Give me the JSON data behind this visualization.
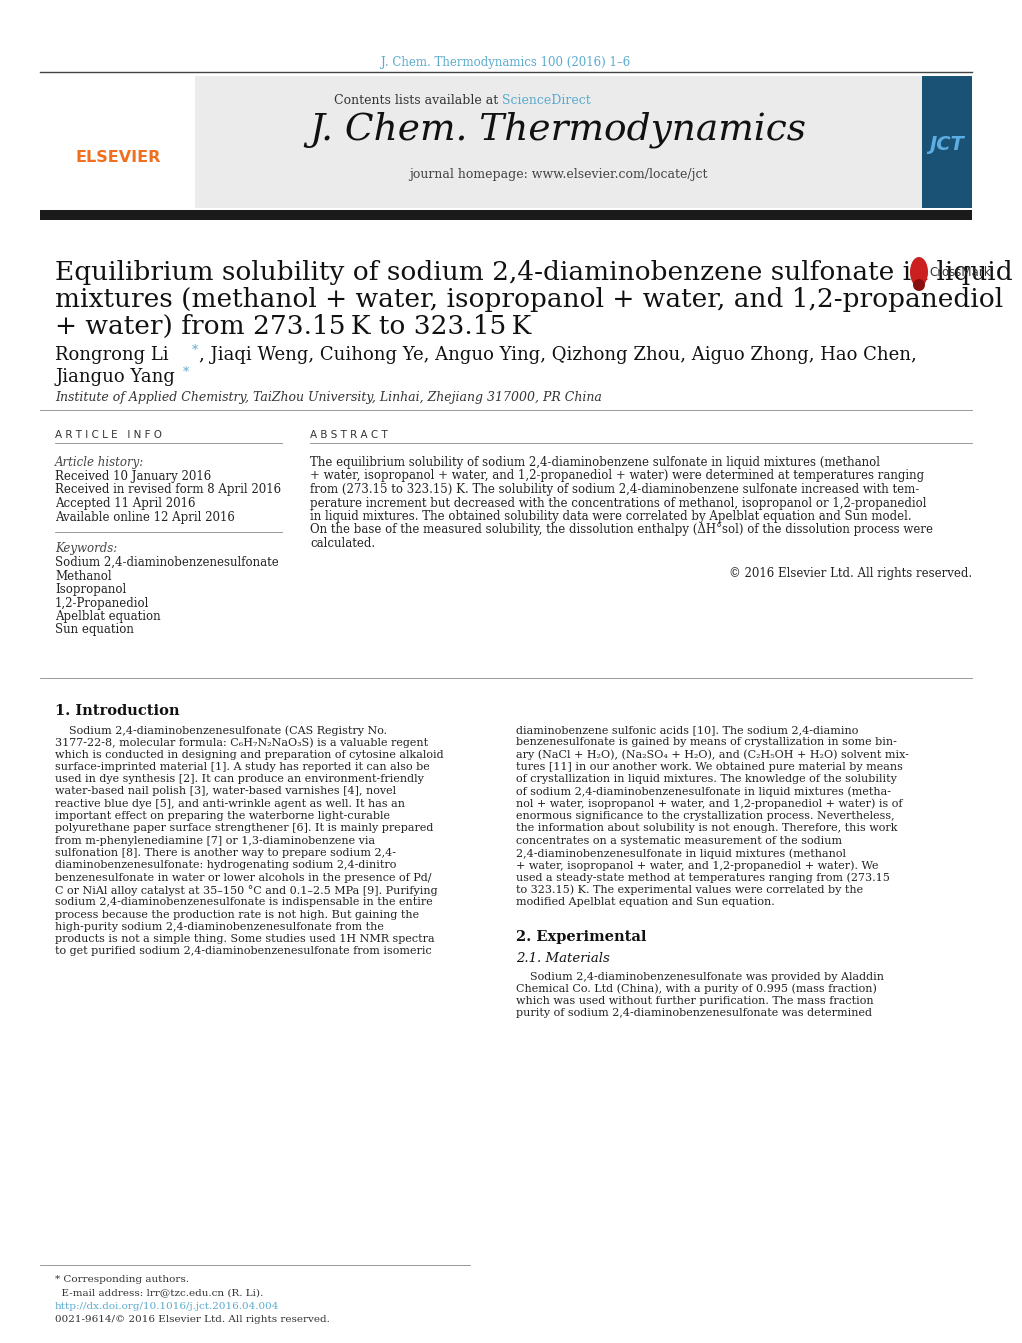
{
  "page_bg": "#ffffff",
  "top_citation": "J. Chem. Thermodynamics 100 (2016) 1–6",
  "citation_color": "#5aabce",
  "header_bg": "#ebebeb",
  "sciencedirect_color": "#5aabce",
  "journal_title": "J. Chem. Thermodynamics",
  "journal_homepage": "journal homepage: www.elsevier.com/locate/jct",
  "thick_bar_color": "#1a1a1a",
  "article_title_lines": [
    "Equilibrium solubility of sodium 2,4-diaminobenzene sulfonate in liquid",
    "mixtures (methanol + water, isopropanol + water, and 1,2-propanediol",
    "+ water) from 273.15 K to 323.15 K"
  ],
  "article_title_size": 19.5,
  "authors_line1": "Rongrong Li",
  "authors_line1b": ", Jiaqi Weng, Cuihong Ye, Anguo Ying, Qizhong Zhou, Aiguo Zhong, Hao Chen,",
  "authors_line2": "Jianguo Yang",
  "authors_size": 13,
  "affiliation": "Institute of Applied Chemistry, TaiZhou University, Linhai, Zhejiang 317000, PR China",
  "article_info_header": "A R T I C L E   I N F O",
  "abstract_header": "A B S T R A C T",
  "article_history_label": "Article history:",
  "history_items": [
    "Received 10 January 2016",
    "Received in revised form 8 April 2016",
    "Accepted 11 April 2016",
    "Available online 12 April 2016"
  ],
  "keywords_label": "Keywords:",
  "keywords": [
    "Sodium 2,4-diaminobenzenesulfonate",
    "Methanol",
    "Isopropanol",
    "1,2-Propanediol",
    "Apelblat equation",
    "Sun equation"
  ],
  "abstract_text_lines": [
    "The equilibrium solubility of sodium 2,4-diaminobenzene sulfonate in liquid mixtures (methanol",
    "+ water, isopropanol + water, and 1,2-propanediol + water) were determined at temperatures ranging",
    "from (273.15 to 323.15) K. The solubility of sodium 2,4-diaminobenzene sulfonate increased with tem-",
    "perature increment but decreased with the concentrations of methanol, isopropanol or 1,2-propanediol",
    "in liquid mixtures. The obtained solubility data were correlated by Apelblat equation and Sun model.",
    "On the base of the measured solubility, the dissolution enthalpy (ΔH°sol) of the dissolution process were",
    "calculated."
  ],
  "copyright": "© 2016 Elsevier Ltd. All rights reserved.",
  "intro_heading": "1. Introduction",
  "intro_col1_lines": [
    "    Sodium 2,4-diaminobenzenesulfonate (CAS Registry No.",
    "3177-22-8, molecular formula: C₆H₇N₂NaO₃S) is a valuable regent",
    "which is conducted in designing and preparation of cytosine alkaloid",
    "surface-imprinted material [1]. A study has reported it can also be",
    "used in dye synthesis [2]. It can produce an environment-friendly",
    "water-based nail polish [3], water-based varnishes [4], novel",
    "reactive blue dye [5], and anti-wrinkle agent as well. It has an",
    "important effect on preparing the waterborne light-curable",
    "polyurethane paper surface strengthener [6]. It is mainly prepared",
    "from m-phenylenediamine [7] or 1,3-diaminobenzene via",
    "sulfonation [8]. There is another way to prepare sodium 2,4-",
    "diaminobenzenesulfonate: hydrogenating sodium 2,4-dinitro",
    "benzenesulfonate in water or lower alcohols in the presence of Pd/",
    "C or NiAl alloy catalyst at 35–150 °C and 0.1–2.5 MPa [9]. Purifying",
    "sodium 2,4-diaminobenzenesulfonate is indispensable in the entire",
    "process because the production rate is not high. But gaining the",
    "high-purity sodium 2,4-diaminobenzenesulfonate from the",
    "products is not a simple thing. Some studies used 1H NMR spectra",
    "to get purified sodium 2,4-diaminobenzenesulfonate from isomeric"
  ],
  "intro_col2_lines": [
    "diaminobenzene sulfonic acids [10]. The sodium 2,4-diamino",
    "benzenesulfonate is gained by means of crystallization in some bin-",
    "ary (NaCl + H₂O), (Na₂SO₄ + H₂O), and (C₂H₅OH + H₂O) solvent mix-",
    "tures [11] in our another work. We obtained pure material by means",
    "of crystallization in liquid mixtures. The knowledge of the solubility",
    "of sodium 2,4-diaminobenzenesulfonate in liquid mixtures (metha-",
    "nol + water, isopropanol + water, and 1,2-propanediol + water) is of",
    "enormous significance to the crystallization process. Nevertheless,",
    "the information about solubility is not enough. Therefore, this work",
    "concentrates on a systematic measurement of the sodium",
    "2,4-diaminobenzenesulfonate in liquid mixtures (methanol",
    "+ water, isopropanol + water, and 1,2-propanediol + water). We",
    "used a steady-state method at temperatures ranging from (273.15",
    "to 323.15) K. The experimental values were correlated by the",
    "modified Apelblat equation and Sun equation."
  ],
  "section2_heading": "2. Experimental",
  "section21_heading": "2.1. Materials",
  "section21_lines": [
    "    Sodium 2,4-diaminobenzenesulfonate was provided by Aladdin",
    "Chemical Co. Ltd (China), with a purity of 0.995 (mass fraction)",
    "which was used without further purification. The mass fraction",
    "purity of sodium 2,4-diaminobenzenesulfonate was determined"
  ],
  "footnote1": "* Corresponding authors.",
  "footnote2": "  E-mail address: lrr@tzc.edu.cn (R. Li).",
  "doi": "http://dx.doi.org/10.1016/j.jct.2016.04.004",
  "issn": "0021-9614/© 2016 Elsevier Ltd. All rights reserved.",
  "elsevier_color": "#f07020",
  "link_color": "#5aabce"
}
